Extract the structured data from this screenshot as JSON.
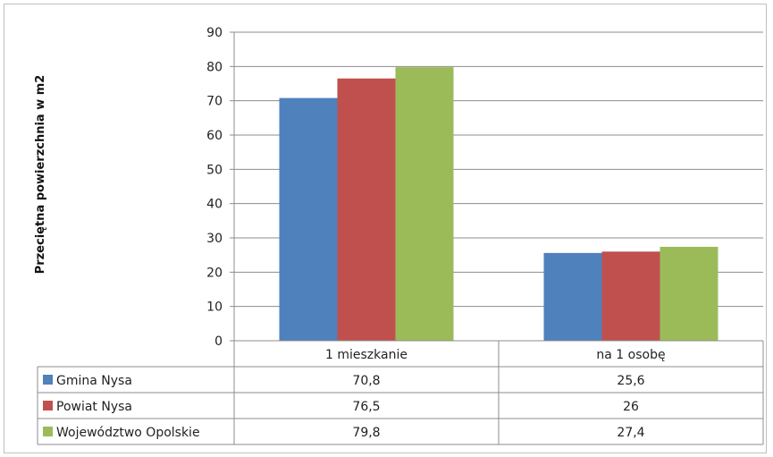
{
  "chart_data": {
    "type": "bar",
    "title": "",
    "xlabel": "",
    "ylabel": "Przeciętna powierzchnia w m2",
    "ylim": [
      0,
      90
    ],
    "yticks": [
      0,
      10,
      20,
      30,
      40,
      50,
      60,
      70,
      80,
      90
    ],
    "grid": true,
    "legend": "data-table",
    "categories": [
      "1 mieszkanie",
      "na 1 osobę"
    ],
    "series": [
      {
        "name": "Gmina Nysa",
        "color": "#4f81bd",
        "values": [
          70.8,
          25.6
        ],
        "labels": [
          "70,8",
          "25,6"
        ]
      },
      {
        "name": "Powiat Nysa",
        "color": "#c0504d",
        "values": [
          76.5,
          26
        ],
        "labels": [
          "76,5",
          "26"
        ]
      },
      {
        "name": "Województwo Opolskie",
        "color": "#9bbb59",
        "values": [
          79.8,
          27.4
        ],
        "labels": [
          "79,8",
          "27,4"
        ]
      }
    ]
  }
}
